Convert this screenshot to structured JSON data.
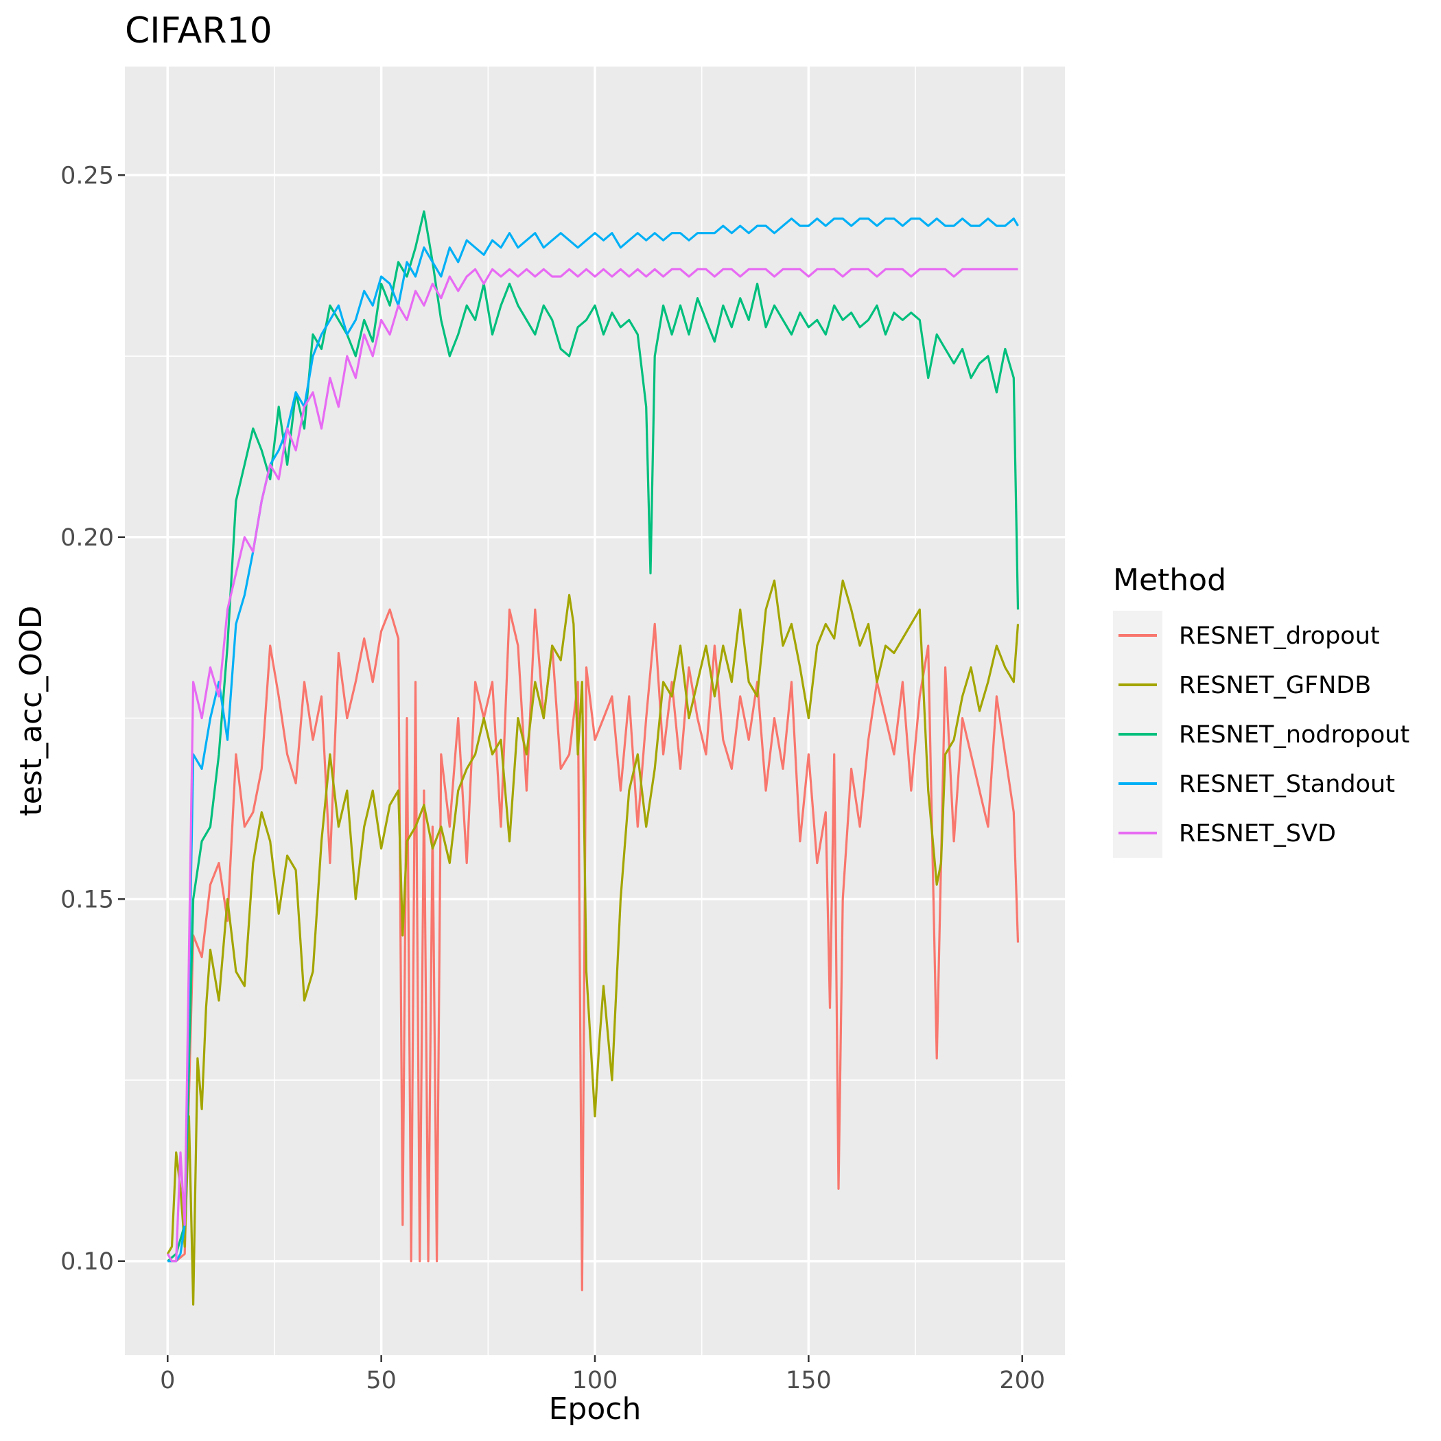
{
  "chart_data": {
    "type": "line",
    "title": "CIFAR10",
    "xlabel": "Epoch",
    "ylabel": "test_acc_OOD",
    "xlim": [
      -10,
      210
    ],
    "ylim": [
      0.087,
      0.265
    ],
    "x_ticks": [
      0,
      50,
      100,
      150,
      200
    ],
    "y_ticks": [
      0.1,
      0.15,
      0.2,
      0.25
    ],
    "x_tick_labels": [
      "0",
      "50",
      "100",
      "150",
      "200"
    ],
    "y_tick_labels": [
      "0.10",
      "0.15",
      "0.20",
      "0.25"
    ],
    "grid": true,
    "legend": {
      "title": "Method",
      "placement": "right"
    },
    "series": [
      {
        "name": "RESNET_dropout",
        "color": "#F8766D",
        "x": [
          0,
          2,
          4,
          6,
          8,
          10,
          12,
          14,
          16,
          18,
          20,
          22,
          24,
          26,
          28,
          30,
          32,
          34,
          36,
          38,
          40,
          42,
          44,
          46,
          48,
          50,
          52,
          54,
          55,
          56,
          57,
          58,
          59,
          60,
          61,
          62,
          63,
          64,
          66,
          68,
          70,
          72,
          74,
          76,
          78,
          80,
          82,
          84,
          86,
          88,
          90,
          92,
          94,
          96,
          97,
          98,
          100,
          102,
          104,
          106,
          108,
          110,
          112,
          114,
          116,
          118,
          120,
          122,
          124,
          126,
          128,
          130,
          132,
          134,
          136,
          138,
          140,
          142,
          144,
          146,
          148,
          150,
          152,
          154,
          155,
          156,
          157,
          158,
          160,
          162,
          164,
          166,
          168,
          170,
          172,
          174,
          176,
          178,
          180,
          182,
          184,
          186,
          188,
          190,
          192,
          194,
          196,
          198,
          199
        ],
        "values": [
          0.1,
          0.1,
          0.101,
          0.145,
          0.142,
          0.152,
          0.155,
          0.147,
          0.17,
          0.16,
          0.162,
          0.168,
          0.185,
          0.178,
          0.17,
          0.166,
          0.18,
          0.172,
          0.178,
          0.155,
          0.184,
          0.175,
          0.18,
          0.186,
          0.18,
          0.187,
          0.19,
          0.186,
          0.105,
          0.175,
          0.1,
          0.18,
          0.1,
          0.165,
          0.1,
          0.16,
          0.1,
          0.17,
          0.16,
          0.175,
          0.155,
          0.18,
          0.175,
          0.18,
          0.16,
          0.19,
          0.185,
          0.165,
          0.19,
          0.175,
          0.185,
          0.168,
          0.17,
          0.18,
          0.096,
          0.182,
          0.172,
          0.175,
          0.178,
          0.165,
          0.178,
          0.16,
          0.175,
          0.188,
          0.17,
          0.18,
          0.168,
          0.182,
          0.175,
          0.17,
          0.185,
          0.172,
          0.168,
          0.178,
          0.172,
          0.18,
          0.165,
          0.175,
          0.168,
          0.18,
          0.158,
          0.17,
          0.155,
          0.162,
          0.135,
          0.17,
          0.11,
          0.15,
          0.168,
          0.16,
          0.172,
          0.18,
          0.175,
          0.17,
          0.18,
          0.165,
          0.178,
          0.185,
          0.128,
          0.182,
          0.158,
          0.175,
          0.17,
          0.165,
          0.16,
          0.178,
          0.17,
          0.162,
          0.144
        ]
      },
      {
        "name": "RESNET_GFNDB",
        "color": "#A3A500",
        "x": [
          0,
          1,
          2,
          3,
          4,
          5,
          6,
          7,
          8,
          9,
          10,
          12,
          14,
          16,
          18,
          20,
          22,
          24,
          26,
          28,
          30,
          32,
          34,
          36,
          38,
          40,
          42,
          44,
          46,
          48,
          50,
          52,
          54,
          55,
          56,
          58,
          60,
          62,
          64,
          66,
          68,
          70,
          72,
          74,
          76,
          78,
          80,
          82,
          84,
          86,
          88,
          90,
          92,
          94,
          95,
          96,
          97,
          98,
          100,
          101,
          102,
          104,
          106,
          108,
          110,
          112,
          114,
          116,
          118,
          120,
          122,
          124,
          126,
          128,
          130,
          132,
          134,
          136,
          138,
          140,
          142,
          144,
          146,
          148,
          150,
          152,
          154,
          156,
          158,
          160,
          162,
          164,
          166,
          168,
          170,
          172,
          174,
          176,
          178,
          180,
          181,
          182,
          184,
          186,
          188,
          190,
          192,
          194,
          196,
          198,
          199
        ],
        "values": [
          0.101,
          0.102,
          0.115,
          0.11,
          0.102,
          0.12,
          0.094,
          0.128,
          0.121,
          0.135,
          0.143,
          0.136,
          0.15,
          0.14,
          0.138,
          0.155,
          0.162,
          0.158,
          0.148,
          0.156,
          0.154,
          0.136,
          0.14,
          0.158,
          0.17,
          0.16,
          0.165,
          0.15,
          0.16,
          0.165,
          0.157,
          0.163,
          0.165,
          0.145,
          0.158,
          0.16,
          0.163,
          0.157,
          0.16,
          0.155,
          0.165,
          0.168,
          0.17,
          0.175,
          0.17,
          0.172,
          0.158,
          0.175,
          0.17,
          0.18,
          0.175,
          0.185,
          0.183,
          0.192,
          0.188,
          0.17,
          0.18,
          0.14,
          0.12,
          0.13,
          0.138,
          0.125,
          0.15,
          0.165,
          0.17,
          0.16,
          0.168,
          0.18,
          0.178,
          0.185,
          0.175,
          0.18,
          0.185,
          0.178,
          0.185,
          0.18,
          0.19,
          0.18,
          0.178,
          0.19,
          0.194,
          0.185,
          0.188,
          0.182,
          0.175,
          0.185,
          0.188,
          0.186,
          0.194,
          0.19,
          0.185,
          0.188,
          0.18,
          0.185,
          0.184,
          0.186,
          0.188,
          0.19,
          0.165,
          0.152,
          0.155,
          0.17,
          0.172,
          0.178,
          0.182,
          0.176,
          0.18,
          0.185,
          0.182,
          0.18,
          0.188
        ]
      },
      {
        "name": "RESNET_nodropout",
        "color": "#00BF7D",
        "x": [
          0,
          2,
          4,
          6,
          8,
          10,
          12,
          14,
          16,
          18,
          20,
          22,
          24,
          26,
          28,
          30,
          32,
          34,
          36,
          38,
          40,
          42,
          44,
          46,
          48,
          50,
          52,
          54,
          56,
          58,
          60,
          62,
          64,
          66,
          68,
          70,
          72,
          74,
          76,
          78,
          80,
          82,
          84,
          86,
          88,
          90,
          92,
          94,
          96,
          98,
          100,
          102,
          104,
          106,
          108,
          110,
          112,
          113,
          114,
          116,
          118,
          120,
          122,
          124,
          126,
          128,
          130,
          132,
          134,
          136,
          138,
          140,
          142,
          144,
          146,
          148,
          150,
          152,
          154,
          156,
          158,
          160,
          162,
          164,
          166,
          168,
          170,
          172,
          174,
          176,
          178,
          180,
          182,
          184,
          186,
          188,
          190,
          192,
          194,
          196,
          198,
          199
        ],
        "values": [
          0.1,
          0.101,
          0.105,
          0.15,
          0.158,
          0.16,
          0.17,
          0.185,
          0.205,
          0.21,
          0.215,
          0.212,
          0.208,
          0.218,
          0.21,
          0.22,
          0.215,
          0.228,
          0.226,
          0.232,
          0.23,
          0.228,
          0.225,
          0.23,
          0.227,
          0.235,
          0.232,
          0.238,
          0.236,
          0.24,
          0.245,
          0.238,
          0.23,
          0.225,
          0.228,
          0.232,
          0.23,
          0.235,
          0.228,
          0.232,
          0.235,
          0.232,
          0.23,
          0.228,
          0.232,
          0.23,
          0.226,
          0.225,
          0.229,
          0.23,
          0.232,
          0.228,
          0.231,
          0.229,
          0.23,
          0.228,
          0.218,
          0.195,
          0.225,
          0.232,
          0.228,
          0.232,
          0.228,
          0.233,
          0.23,
          0.227,
          0.232,
          0.229,
          0.233,
          0.23,
          0.235,
          0.229,
          0.232,
          0.23,
          0.228,
          0.231,
          0.229,
          0.23,
          0.228,
          0.232,
          0.23,
          0.231,
          0.229,
          0.23,
          0.232,
          0.228,
          0.231,
          0.23,
          0.231,
          0.23,
          0.222,
          0.228,
          0.226,
          0.224,
          0.226,
          0.222,
          0.224,
          0.225,
          0.22,
          0.226,
          0.222,
          0.19
        ]
      },
      {
        "name": "RESNET_Standout",
        "color": "#00B0F6",
        "x": [
          0,
          2,
          3,
          4,
          6,
          8,
          10,
          12,
          14,
          16,
          18,
          20,
          22,
          24,
          26,
          28,
          30,
          32,
          34,
          36,
          38,
          40,
          42,
          44,
          46,
          48,
          50,
          52,
          54,
          56,
          58,
          60,
          62,
          64,
          66,
          68,
          70,
          72,
          74,
          76,
          78,
          80,
          82,
          84,
          86,
          88,
          90,
          92,
          94,
          96,
          98,
          100,
          102,
          104,
          106,
          108,
          110,
          112,
          114,
          116,
          118,
          120,
          122,
          124,
          126,
          128,
          130,
          132,
          134,
          136,
          138,
          140,
          142,
          144,
          146,
          148,
          150,
          152,
          154,
          156,
          158,
          160,
          162,
          164,
          166,
          168,
          170,
          172,
          174,
          176,
          178,
          180,
          182,
          184,
          186,
          188,
          190,
          192,
          194,
          196,
          198,
          199
        ],
        "values": [
          0.1,
          0.1,
          0.101,
          0.105,
          0.17,
          0.168,
          0.175,
          0.18,
          0.172,
          0.188,
          0.192,
          0.198,
          0.205,
          0.21,
          0.212,
          0.215,
          0.22,
          0.218,
          0.225,
          0.228,
          0.23,
          0.232,
          0.228,
          0.23,
          0.234,
          0.232,
          0.236,
          0.235,
          0.232,
          0.238,
          0.236,
          0.24,
          0.238,
          0.236,
          0.24,
          0.238,
          0.241,
          0.24,
          0.239,
          0.241,
          0.24,
          0.242,
          0.24,
          0.241,
          0.242,
          0.24,
          0.241,
          0.242,
          0.241,
          0.24,
          0.241,
          0.242,
          0.241,
          0.242,
          0.24,
          0.241,
          0.242,
          0.241,
          0.242,
          0.241,
          0.242,
          0.242,
          0.241,
          0.242,
          0.242,
          0.242,
          0.243,
          0.242,
          0.243,
          0.242,
          0.243,
          0.243,
          0.242,
          0.243,
          0.244,
          0.243,
          0.243,
          0.244,
          0.243,
          0.244,
          0.244,
          0.243,
          0.244,
          0.244,
          0.243,
          0.244,
          0.244,
          0.243,
          0.244,
          0.244,
          0.243,
          0.244,
          0.243,
          0.243,
          0.244,
          0.243,
          0.243,
          0.244,
          0.243,
          0.243,
          0.244,
          0.243
        ]
      },
      {
        "name": "RESNET_SVD",
        "color": "#E76BF3",
        "x": [
          0,
          1,
          2,
          3,
          4,
          6,
          8,
          10,
          12,
          14,
          16,
          18,
          20,
          22,
          24,
          26,
          28,
          30,
          32,
          34,
          36,
          38,
          40,
          42,
          44,
          46,
          48,
          50,
          52,
          54,
          56,
          58,
          60,
          62,
          64,
          66,
          68,
          70,
          72,
          74,
          76,
          78,
          80,
          82,
          84,
          86,
          88,
          90,
          92,
          94,
          96,
          98,
          100,
          102,
          104,
          106,
          108,
          110,
          112,
          114,
          116,
          118,
          120,
          122,
          124,
          126,
          128,
          130,
          132,
          134,
          136,
          138,
          140,
          142,
          144,
          146,
          148,
          150,
          152,
          154,
          156,
          158,
          160,
          162,
          164,
          166,
          168,
          170,
          172,
          174,
          176,
          178,
          180,
          182,
          184,
          186,
          188,
          190,
          192,
          194,
          196,
          198,
          199
        ],
        "values": [
          0.101,
          0.1,
          0.1,
          0.115,
          0.105,
          0.18,
          0.175,
          0.182,
          0.178,
          0.19,
          0.195,
          0.2,
          0.198,
          0.205,
          0.21,
          0.208,
          0.215,
          0.212,
          0.218,
          0.22,
          0.215,
          0.222,
          0.218,
          0.225,
          0.222,
          0.228,
          0.225,
          0.23,
          0.228,
          0.232,
          0.23,
          0.234,
          0.232,
          0.235,
          0.233,
          0.236,
          0.234,
          0.236,
          0.237,
          0.235,
          0.237,
          0.236,
          0.237,
          0.236,
          0.237,
          0.236,
          0.237,
          0.236,
          0.236,
          0.237,
          0.236,
          0.237,
          0.236,
          0.237,
          0.236,
          0.237,
          0.236,
          0.237,
          0.236,
          0.237,
          0.236,
          0.237,
          0.237,
          0.236,
          0.237,
          0.237,
          0.236,
          0.237,
          0.237,
          0.236,
          0.237,
          0.237,
          0.237,
          0.236,
          0.237,
          0.237,
          0.237,
          0.236,
          0.237,
          0.237,
          0.237,
          0.236,
          0.237,
          0.237,
          0.237,
          0.236,
          0.237,
          0.237,
          0.237,
          0.236,
          0.237,
          0.237,
          0.237,
          0.237,
          0.236,
          0.237,
          0.237,
          0.237,
          0.237,
          0.237,
          0.237,
          0.237,
          0.237
        ]
      }
    ]
  }
}
